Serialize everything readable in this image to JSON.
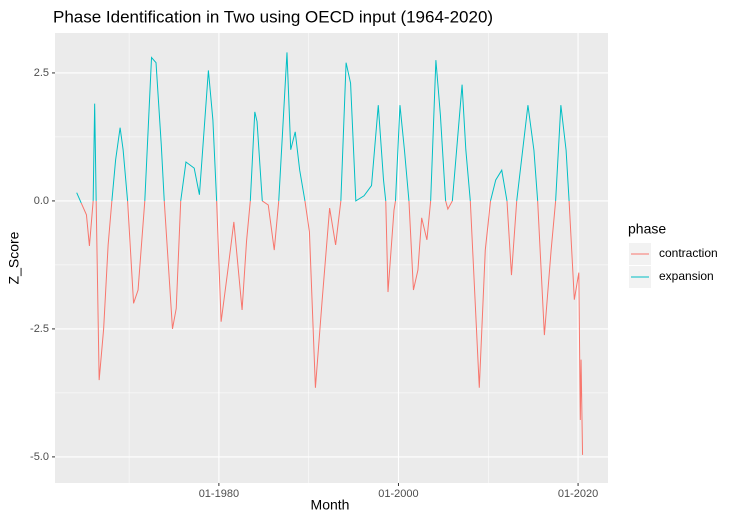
{
  "chart_data": {
    "type": "line",
    "title": "Phase Identification in Two using OECD input (1964-2020)",
    "x_label": "Month",
    "y_label": "Z_Score",
    "legend_title": "phase",
    "x": [
      "03-1964",
      "09-1964",
      "04-1965",
      "08-1965",
      "01-1966",
      "03-1966",
      "05-1966",
      "09-1966",
      "03-1967",
      "09-1967",
      "02-1968",
      "07-1968",
      "01-1969",
      "05-1969",
      "11-1969",
      "07-1970",
      "01-1971",
      "10-1971",
      "07-1972",
      "01-1973",
      "08-1973",
      "12-1973",
      "11-1974",
      "04-1975",
      "10-1975",
      "05-1976",
      "04-1977",
      "11-1977",
      "11-1978",
      "05-1979",
      "10-1979",
      "04-1980",
      "01-1981",
      "09-1981",
      "02-1982",
      "08-1982",
      "02-1983",
      "07-1983",
      "01-1984",
      "04-1984",
      "11-1984",
      "07-1985",
      "03-1986",
      "09-1986",
      "08-1987",
      "01-1988",
      "07-1988",
      "01-1989",
      "08-1989",
      "02-1990",
      "10-1990",
      "07-1991",
      "05-1992",
      "01-1993",
      "08-1993",
      "03-1994",
      "09-1994",
      "04-1995",
      "03-1996",
      "01-1997",
      "10-1997",
      "05-1998",
      "08-1998",
      "11-1998",
      "07-1999",
      "09-1999",
      "03-2000",
      "09-2000",
      "03-2001",
      "09-2001",
      "03-2002",
      "08-2002",
      "03-2003",
      "08-2003",
      "03-2004",
      "09-2004",
      "04-2005",
      "07-2005",
      "01-2006",
      "02-2007",
      "07-2007",
      "01-2008",
      "01-2009",
      "09-2009",
      "04-2010",
      "11-2010",
      "07-2011",
      "02-2012",
      "08-2012",
      "03-2013",
      "06-2014",
      "02-2015",
      "07-2015",
      "04-2016",
      "01-2017",
      "07-2017",
      "02-2018",
      "09-2018",
      "01-2019",
      "08-2019",
      "02-2020",
      "04-2020",
      "05-2020",
      "07-2020"
    ],
    "series": [
      {
        "name": "contraction",
        "color": "#F8766D",
        "values": [
          null,
          -0.04,
          -0.27,
          -0.88,
          0,
          null,
          0,
          -3.5,
          -2.5,
          -0.86,
          0,
          null,
          null,
          null,
          0,
          -2.0,
          -1.74,
          0,
          null,
          null,
          null,
          0,
          -2.5,
          -2.1,
          0,
          null,
          null,
          null,
          null,
          null,
          0,
          -2.36,
          -1.35,
          -0.41,
          -1.19,
          -2.13,
          -0.78,
          0,
          null,
          null,
          0,
          -0.08,
          -0.96,
          0,
          null,
          null,
          null,
          null,
          0,
          -0.6,
          -3.65,
          -1.94,
          -0.14,
          -0.86,
          0,
          null,
          null,
          0,
          null,
          null,
          null,
          null,
          0,
          -1.78,
          -0.18,
          0,
          null,
          null,
          0,
          -1.74,
          -1.35,
          -0.33,
          -0.76,
          0,
          null,
          null,
          0,
          -0.16,
          0,
          null,
          null,
          0,
          -3.65,
          -0.96,
          0,
          null,
          null,
          0,
          -1.45,
          0,
          null,
          null,
          0,
          -2.62,
          -0.96,
          0,
          null,
          null,
          0,
          -1.93,
          -1.4,
          -4.28,
          -3.1,
          -4.96
        ]
      },
      {
        "name": "expansion",
        "color": "#00BFC4",
        "values": [
          0.16,
          -0.04,
          null,
          null,
          0,
          1.9,
          0,
          null,
          null,
          null,
          0,
          0.8,
          1.43,
          1.0,
          0,
          null,
          null,
          0,
          2.8,
          2.7,
          1.1,
          0,
          null,
          null,
          0,
          0.76,
          0.64,
          0.12,
          2.55,
          1.58,
          0,
          null,
          null,
          null,
          null,
          null,
          null,
          0,
          1.74,
          1.55,
          0,
          null,
          null,
          0,
          2.9,
          1.0,
          1.35,
          0.6,
          0,
          null,
          null,
          null,
          null,
          null,
          0,
          2.7,
          2.3,
          0,
          0.1,
          0.3,
          1.87,
          0.41,
          0,
          null,
          null,
          0,
          1.87,
          0.99,
          0,
          null,
          null,
          null,
          null,
          0,
          2.75,
          1.68,
          0,
          null,
          0,
          2.27,
          1.0,
          0,
          null,
          null,
          0,
          0.41,
          0.6,
          0,
          null,
          0,
          1.87,
          0.99,
          0,
          null,
          null,
          0,
          1.87,
          0.99,
          0,
          null,
          null,
          null,
          null,
          null
        ]
      }
    ],
    "xlim": [
      "10-1961",
      "05-2023"
    ],
    "xticks": [
      "01-1980",
      "01-2000",
      "01-2020"
    ],
    "ylim": [
      -5.51,
      3.28
    ],
    "yticks": [
      {
        "value": -5,
        "label": "-5.0"
      },
      -2.5,
      {
        "value": 0,
        "label": "0.0"
      },
      2.5
    ],
    "grid": true,
    "legend": "right"
  }
}
